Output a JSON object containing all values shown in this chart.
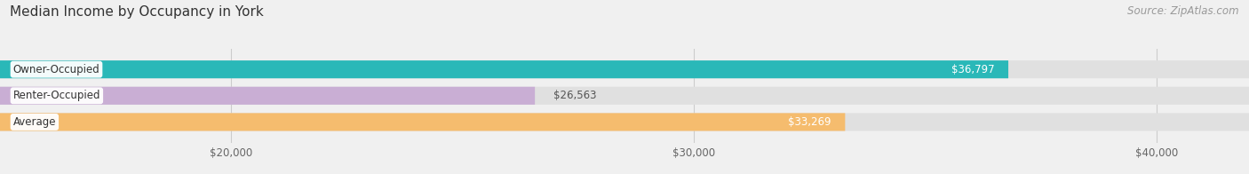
{
  "title": "Median Income by Occupancy in York",
  "source": "Source: ZipAtlas.com",
  "categories": [
    "Owner-Occupied",
    "Renter-Occupied",
    "Average"
  ],
  "values": [
    36797,
    26563,
    33269
  ],
  "bar_colors": [
    "#2ab8b8",
    "#c9aed4",
    "#f5bc6e"
  ],
  "value_labels": [
    "$36,797",
    "$26,563",
    "$33,269"
  ],
  "tick_labels": [
    "$20,000",
    "$30,000",
    "$40,000"
  ],
  "tick_values": [
    20000,
    30000,
    40000
  ],
  "xmin": 15000,
  "xmax": 42000,
  "title_fontsize": 11,
  "source_fontsize": 8.5,
  "label_fontsize": 8.5,
  "value_fontsize": 8.5,
  "tick_fontsize": 8.5,
  "background_color": "#f0f0f0",
  "bar_bg_color": "#e0e0e0"
}
